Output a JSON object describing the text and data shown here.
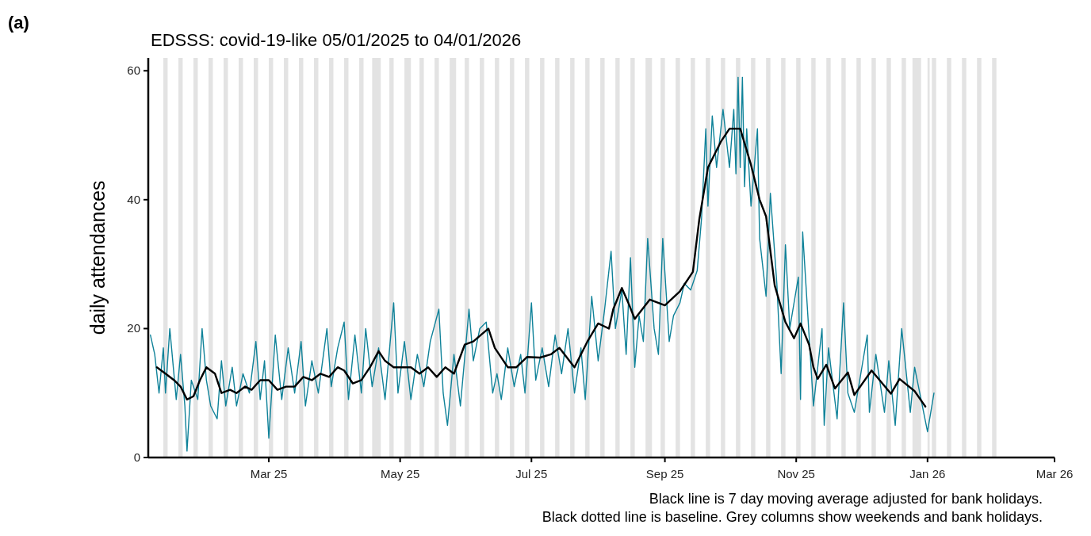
{
  "chart_data": {
    "type": "line",
    "title": "EDSSS: covid-19-like 05/01/2025 to 04/01/2026",
    "ylabel": "daily attendances",
    "annotations": [
      "(a)",
      "Black line is 7 day moving average adjusted for bank holidays.",
      "Black dotted line is baseline. Grey columns show weekends and bank holidays."
    ],
    "xlim": [
      "2025-01-04",
      "2026-03-01"
    ],
    "xticks": [
      {
        "value": "2025-03-01",
        "label": "Mar 25"
      },
      {
        "value": "2025-05-01",
        "label": "May 25"
      },
      {
        "value": "2025-07-01",
        "label": "Jul 25"
      },
      {
        "value": "2025-09-01",
        "label": "Sep 25"
      },
      {
        "value": "2025-11-01",
        "label": "Nov 25"
      },
      {
        "value": "2026-01-01",
        "label": "Jan 26"
      },
      {
        "value": "2026-03-01",
        "label": "Mar 26"
      }
    ],
    "ylim": [
      0,
      62
    ],
    "yticks": [
      0,
      20,
      40,
      60
    ],
    "grid": false,
    "bands": [
      {
        "axis": "x",
        "from": "2025-01-11",
        "to": "2025-01-13",
        "color": "#e3e3e3"
      },
      {
        "axis": "x",
        "from": "2025-01-18",
        "to": "2025-01-20",
        "color": "#e3e3e3"
      },
      {
        "axis": "x",
        "from": "2025-01-25",
        "to": "2025-01-27",
        "color": "#e3e3e3"
      },
      {
        "axis": "x",
        "from": "2025-02-01",
        "to": "2025-02-03",
        "color": "#e3e3e3"
      },
      {
        "axis": "x",
        "from": "2025-02-08",
        "to": "2025-02-10",
        "color": "#e3e3e3"
      },
      {
        "axis": "x",
        "from": "2025-02-15",
        "to": "2025-02-17",
        "color": "#e3e3e3"
      },
      {
        "axis": "x",
        "from": "2025-02-22",
        "to": "2025-02-24",
        "color": "#e3e3e3"
      },
      {
        "axis": "x",
        "from": "2025-03-01",
        "to": "2025-03-03",
        "color": "#e3e3e3"
      },
      {
        "axis": "x",
        "from": "2025-03-08",
        "to": "2025-03-10",
        "color": "#e3e3e3"
      },
      {
        "axis": "x",
        "from": "2025-03-15",
        "to": "2025-03-17",
        "color": "#e3e3e3"
      },
      {
        "axis": "x",
        "from": "2025-03-22",
        "to": "2025-03-24",
        "color": "#e3e3e3"
      },
      {
        "axis": "x",
        "from": "2025-03-29",
        "to": "2025-03-31",
        "color": "#e3e3e3"
      },
      {
        "axis": "x",
        "from": "2025-04-05",
        "to": "2025-04-07",
        "color": "#e3e3e3"
      },
      {
        "axis": "x",
        "from": "2025-04-12",
        "to": "2025-04-14",
        "color": "#e3e3e3"
      },
      {
        "axis": "x",
        "from": "2025-04-18",
        "to": "2025-04-22",
        "color": "#e3e3e3"
      },
      {
        "axis": "x",
        "from": "2025-04-26",
        "to": "2025-04-28",
        "color": "#e3e3e3"
      },
      {
        "axis": "x",
        "from": "2025-05-03",
        "to": "2025-05-06",
        "color": "#e3e3e3"
      },
      {
        "axis": "x",
        "from": "2025-05-10",
        "to": "2025-05-12",
        "color": "#e3e3e3"
      },
      {
        "axis": "x",
        "from": "2025-05-17",
        "to": "2025-05-19",
        "color": "#e3e3e3"
      },
      {
        "axis": "x",
        "from": "2025-05-24",
        "to": "2025-05-27",
        "color": "#e3e3e3"
      },
      {
        "axis": "x",
        "from": "2025-05-31",
        "to": "2025-06-02",
        "color": "#e3e3e3"
      },
      {
        "axis": "x",
        "from": "2025-06-07",
        "to": "2025-06-09",
        "color": "#e3e3e3"
      },
      {
        "axis": "x",
        "from": "2025-06-14",
        "to": "2025-06-16",
        "color": "#e3e3e3"
      },
      {
        "axis": "x",
        "from": "2025-06-21",
        "to": "2025-06-23",
        "color": "#e3e3e3"
      },
      {
        "axis": "x",
        "from": "2025-06-28",
        "to": "2025-06-30",
        "color": "#e3e3e3"
      },
      {
        "axis": "x",
        "from": "2025-07-05",
        "to": "2025-07-07",
        "color": "#e3e3e3"
      },
      {
        "axis": "x",
        "from": "2025-07-12",
        "to": "2025-07-14",
        "color": "#e3e3e3"
      },
      {
        "axis": "x",
        "from": "2025-07-19",
        "to": "2025-07-21",
        "color": "#e3e3e3"
      },
      {
        "axis": "x",
        "from": "2025-07-26",
        "to": "2025-07-28",
        "color": "#e3e3e3"
      },
      {
        "axis": "x",
        "from": "2025-08-02",
        "to": "2025-08-04",
        "color": "#e3e3e3"
      },
      {
        "axis": "x",
        "from": "2025-08-09",
        "to": "2025-08-11",
        "color": "#e3e3e3"
      },
      {
        "axis": "x",
        "from": "2025-08-16",
        "to": "2025-08-18",
        "color": "#e3e3e3"
      },
      {
        "axis": "x",
        "from": "2025-08-23",
        "to": "2025-08-26",
        "color": "#e3e3e3"
      },
      {
        "axis": "x",
        "from": "2025-08-30",
        "to": "2025-09-01",
        "color": "#e3e3e3"
      },
      {
        "axis": "x",
        "from": "2025-09-06",
        "to": "2025-09-08",
        "color": "#e3e3e3"
      },
      {
        "axis": "x",
        "from": "2025-09-13",
        "to": "2025-09-15",
        "color": "#e3e3e3"
      },
      {
        "axis": "x",
        "from": "2025-09-20",
        "to": "2025-09-22",
        "color": "#e3e3e3"
      },
      {
        "axis": "x",
        "from": "2025-09-27",
        "to": "2025-09-29",
        "color": "#e3e3e3"
      },
      {
        "axis": "x",
        "from": "2025-10-04",
        "to": "2025-10-06",
        "color": "#e3e3e3"
      },
      {
        "axis": "x",
        "from": "2025-10-11",
        "to": "2025-10-13",
        "color": "#e3e3e3"
      },
      {
        "axis": "x",
        "from": "2025-10-18",
        "to": "2025-10-20",
        "color": "#e3e3e3"
      },
      {
        "axis": "x",
        "from": "2025-10-25",
        "to": "2025-10-27",
        "color": "#e3e3e3"
      },
      {
        "axis": "x",
        "from": "2025-11-01",
        "to": "2025-11-03",
        "color": "#e3e3e3"
      },
      {
        "axis": "x",
        "from": "2025-11-08",
        "to": "2025-11-10",
        "color": "#e3e3e3"
      },
      {
        "axis": "x",
        "from": "2025-11-15",
        "to": "2025-11-17",
        "color": "#e3e3e3"
      },
      {
        "axis": "x",
        "from": "2025-11-22",
        "to": "2025-11-24",
        "color": "#e3e3e3"
      },
      {
        "axis": "x",
        "from": "2025-11-29",
        "to": "2025-12-01",
        "color": "#e3e3e3"
      },
      {
        "axis": "x",
        "from": "2025-12-06",
        "to": "2025-12-08",
        "color": "#e3e3e3"
      },
      {
        "axis": "x",
        "from": "2025-12-13",
        "to": "2025-12-15",
        "color": "#e3e3e3"
      },
      {
        "axis": "x",
        "from": "2025-12-20",
        "to": "2025-12-22",
        "color": "#e3e3e3"
      },
      {
        "axis": "x",
        "from": "2025-12-25",
        "to": "2025-12-29",
        "color": "#e3e3e3"
      },
      {
        "axis": "x",
        "from": "2026-01-01",
        "to": "2026-01-02",
        "color": "#e3e3e3"
      },
      {
        "axis": "x",
        "from": "2026-01-03",
        "to": "2026-01-05",
        "color": "#e3e3e3"
      },
      {
        "axis": "x",
        "from": "2026-01-10",
        "to": "2026-01-12",
        "color": "#e3e3e3"
      },
      {
        "axis": "x",
        "from": "2026-01-17",
        "to": "2026-01-19",
        "color": "#e3e3e3"
      },
      {
        "axis": "x",
        "from": "2026-01-24",
        "to": "2026-01-26",
        "color": "#e3e3e3"
      },
      {
        "axis": "x",
        "from": "2026-01-31",
        "to": "2026-02-02",
        "color": "#e3e3e3"
      }
    ],
    "series": [
      {
        "color": "#0f8299",
        "x": [
          "2025-01-05",
          "2025-01-07",
          "2025-01-09",
          "2025-01-11",
          "2025-01-12",
          "2025-01-14",
          "2025-01-17",
          "2025-01-19",
          "2025-01-21",
          "2025-01-22",
          "2025-01-24",
          "2025-01-27",
          "2025-01-29",
          "2025-01-31",
          "2025-02-02",
          "2025-02-05",
          "2025-02-07",
          "2025-02-09",
          "2025-02-12",
          "2025-02-14",
          "2025-02-17",
          "2025-02-20",
          "2025-02-23",
          "2025-02-25",
          "2025-02-27",
          "2025-03-01",
          "2025-03-04",
          "2025-03-07",
          "2025-03-10",
          "2025-03-13",
          "2025-03-16",
          "2025-03-18",
          "2025-03-21",
          "2025-03-24",
          "2025-03-28",
          "2025-03-30",
          "2025-04-02",
          "2025-04-05",
          "2025-04-07",
          "2025-04-10",
          "2025-04-13",
          "2025-04-15",
          "2025-04-18",
          "2025-04-21",
          "2025-04-24",
          "2025-04-28",
          "2025-04-30",
          "2025-05-03",
          "2025-05-06",
          "2025-05-09",
          "2025-05-12",
          "2025-05-15",
          "2025-05-19",
          "2025-05-21",
          "2025-05-23",
          "2025-05-26",
          "2025-05-29",
          "2025-06-02",
          "2025-06-04",
          "2025-06-07",
          "2025-06-10",
          "2025-06-13",
          "2025-06-15",
          "2025-06-17",
          "2025-06-20",
          "2025-06-23",
          "2025-06-26",
          "2025-06-28",
          "2025-07-01",
          "2025-07-03",
          "2025-07-06",
          "2025-07-09",
          "2025-07-12",
          "2025-07-15",
          "2025-07-18",
          "2025-07-21",
          "2025-07-24",
          "2025-07-26",
          "2025-07-29",
          "2025-08-01",
          "2025-08-04",
          "2025-08-07",
          "2025-08-09",
          "2025-08-12",
          "2025-08-14",
          "2025-08-16",
          "2025-08-18",
          "2025-08-20",
          "2025-08-22",
          "2025-08-24",
          "2025-08-27",
          "2025-08-29",
          "2025-08-31",
          "2025-09-03",
          "2025-09-05",
          "2025-09-08",
          "2025-09-10",
          "2025-09-13",
          "2025-09-16",
          "2025-09-18",
          "2025-09-20",
          "2025-09-21",
          "2025-09-23",
          "2025-09-25",
          "2025-09-28",
          "2025-10-01",
          "2025-10-03",
          "2025-10-04",
          "2025-10-05",
          "2025-10-06",
          "2025-10-07",
          "2025-10-08",
          "2025-10-09",
          "2025-10-11",
          "2025-10-14",
          "2025-10-15",
          "2025-10-18",
          "2025-10-20",
          "2025-10-23",
          "2025-10-25",
          "2025-10-27",
          "2025-10-29",
          "2025-11-02",
          "2025-11-03",
          "2025-11-04",
          "2025-11-09",
          "2025-11-13",
          "2025-11-14",
          "2025-11-16",
          "2025-11-20",
          "2025-11-23",
          "2025-11-25",
          "2025-11-28",
          "2025-12-04",
          "2025-12-05",
          "2025-12-08",
          "2025-12-12",
          "2025-12-14",
          "2025-12-17",
          "2025-12-20",
          "2025-12-24",
          "2025-12-26",
          "2026-01-01",
          "2026-01-04"
        ],
        "values": [
          19,
          16,
          10,
          17,
          10,
          20,
          9,
          16,
          8,
          1,
          12,
          9,
          20,
          12,
          8,
          6,
          15,
          8,
          14,
          8,
          13,
          10,
          18,
          9,
          15,
          3,
          19,
          9,
          17,
          10,
          18,
          8,
          15,
          10,
          20,
          11,
          17,
          21,
          9,
          19,
          10,
          20,
          11,
          17,
          9,
          24,
          10,
          18,
          9,
          16,
          11,
          18,
          23,
          10,
          5,
          16,
          8,
          23,
          15,
          20,
          21,
          10,
          13,
          9,
          17,
          11,
          16,
          10,
          24,
          12,
          17,
          11,
          19,
          13,
          20,
          10,
          17,
          9,
          25,
          15,
          23,
          32,
          20,
          26,
          16,
          31,
          14,
          22,
          18,
          34,
          20,
          16,
          34,
          18,
          22,
          24,
          27,
          26,
          29,
          37,
          51,
          39,
          53,
          45,
          54,
          45,
          54,
          44,
          59,
          45,
          59,
          42,
          51,
          39,
          51,
          34,
          25,
          41,
          27,
          13,
          33,
          20,
          28,
          9,
          35,
          8,
          20,
          5,
          17,
          6,
          24,
          10,
          7,
          19,
          7,
          16,
          7,
          15,
          5,
          20,
          7,
          14,
          4,
          10
        ]
      },
      {
        "color": "#000000",
        "x": [
          "2025-01-08",
          "2025-01-12",
          "2025-01-16",
          "2025-01-19",
          "2025-01-22",
          "2025-01-25",
          "2025-01-28",
          "2025-01-31",
          "2025-02-04",
          "2025-02-07",
          "2025-02-11",
          "2025-02-14",
          "2025-02-18",
          "2025-02-21",
          "2025-02-25",
          "2025-03-01",
          "2025-03-05",
          "2025-03-09",
          "2025-03-13",
          "2025-03-17",
          "2025-03-21",
          "2025-03-25",
          "2025-03-29",
          "2025-04-02",
          "2025-04-05",
          "2025-04-09",
          "2025-04-13",
          "2025-04-17",
          "2025-04-21",
          "2025-04-24",
          "2025-04-28",
          "2025-05-02",
          "2025-05-06",
          "2025-05-10",
          "2025-05-14",
          "2025-05-18",
          "2025-05-22",
          "2025-05-26",
          "2025-05-31",
          "2025-06-04",
          "2025-06-11",
          "2025-06-14",
          "2025-06-20",
          "2025-06-24",
          "2025-06-29",
          "2025-07-05",
          "2025-07-10",
          "2025-07-14",
          "2025-07-21",
          "2025-07-27",
          "2025-08-01",
          "2025-08-06",
          "2025-08-08",
          "2025-08-12",
          "2025-08-15",
          "2025-08-18",
          "2025-08-25",
          "2025-09-01",
          "2025-09-08",
          "2025-09-14",
          "2025-09-17",
          "2025-09-21",
          "2025-09-27",
          "2025-10-01",
          "2025-10-06",
          "2025-10-11",
          "2025-10-15",
          "2025-10-18",
          "2025-10-22",
          "2025-10-27",
          "2025-10-31",
          "2025-11-03",
          "2025-11-07",
          "2025-11-09",
          "2025-11-11",
          "2025-11-15",
          "2025-11-19",
          "2025-11-25",
          "2025-11-28",
          "2025-12-06",
          "2025-12-15",
          "2025-12-19",
          "2025-12-26",
          "2025-12-31"
        ],
        "values": [
          14,
          13,
          12,
          11,
          9,
          9.5,
          12,
          14,
          13,
          10,
          10.5,
          10,
          11,
          10.5,
          12,
          12,
          10.5,
          11,
          11,
          12.5,
          12,
          13,
          12.5,
          14,
          13.5,
          11.5,
          12,
          14,
          16.5,
          15,
          14,
          14,
          14,
          13,
          14,
          12.5,
          14,
          13,
          17.5,
          18,
          20,
          17,
          14,
          14,
          15.6,
          15.5,
          16,
          17,
          14,
          18,
          20.8,
          20,
          23,
          26.3,
          24,
          21.5,
          24.5,
          23.6,
          25.8,
          28.8,
          37,
          45,
          49,
          51,
          51,
          45.4,
          40,
          37.4,
          26.7,
          21,
          18.5,
          20.8,
          17.5,
          14,
          12.2,
          14.4,
          10.7,
          13.2,
          9.7,
          13.5,
          9.9,
          12.2,
          10.3,
          7.9
        ]
      }
    ]
  }
}
